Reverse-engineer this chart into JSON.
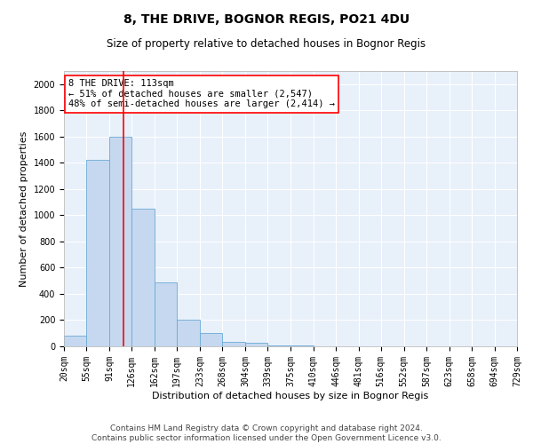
{
  "title": "8, THE DRIVE, BOGNOR REGIS, PO21 4DU",
  "subtitle": "Size of property relative to detached houses in Bognor Regis",
  "xlabel": "Distribution of detached houses by size in Bognor Regis",
  "ylabel": "Number of detached properties",
  "bin_edges": [
    20,
    55,
    91,
    126,
    162,
    197,
    233,
    268,
    304,
    339,
    375,
    410,
    446,
    481,
    516,
    552,
    587,
    623,
    658,
    694,
    729
  ],
  "bar_heights": [
    80,
    1420,
    1600,
    1050,
    490,
    200,
    105,
    35,
    25,
    8,
    5,
    2,
    1,
    1,
    0,
    0,
    0,
    0,
    0,
    0
  ],
  "bar_color": "#c5d8f0",
  "bar_edgecolor": "#6aaad4",
  "background_color": "#e8f0fa",
  "grid_color": "#ffffff",
  "property_line_x": 113,
  "property_line_color": "red",
  "annotation_text": "8 THE DRIVE: 113sqm\n← 51% of detached houses are smaller (2,547)\n48% of semi-detached houses are larger (2,414) →",
  "annotation_box_edgecolor": "red",
  "annotation_box_facecolor": "white",
  "ylim": [
    0,
    2100
  ],
  "yticks": [
    0,
    200,
    400,
    600,
    800,
    1000,
    1200,
    1400,
    1600,
    1800,
    2000
  ],
  "footer_text": "Contains HM Land Registry data © Crown copyright and database right 2024.\nContains public sector information licensed under the Open Government Licence v3.0.",
  "title_fontsize": 10,
  "subtitle_fontsize": 8.5,
  "xlabel_fontsize": 8,
  "ylabel_fontsize": 8,
  "tick_fontsize": 7,
  "annotation_fontsize": 7.5,
  "footer_fontsize": 6.5
}
